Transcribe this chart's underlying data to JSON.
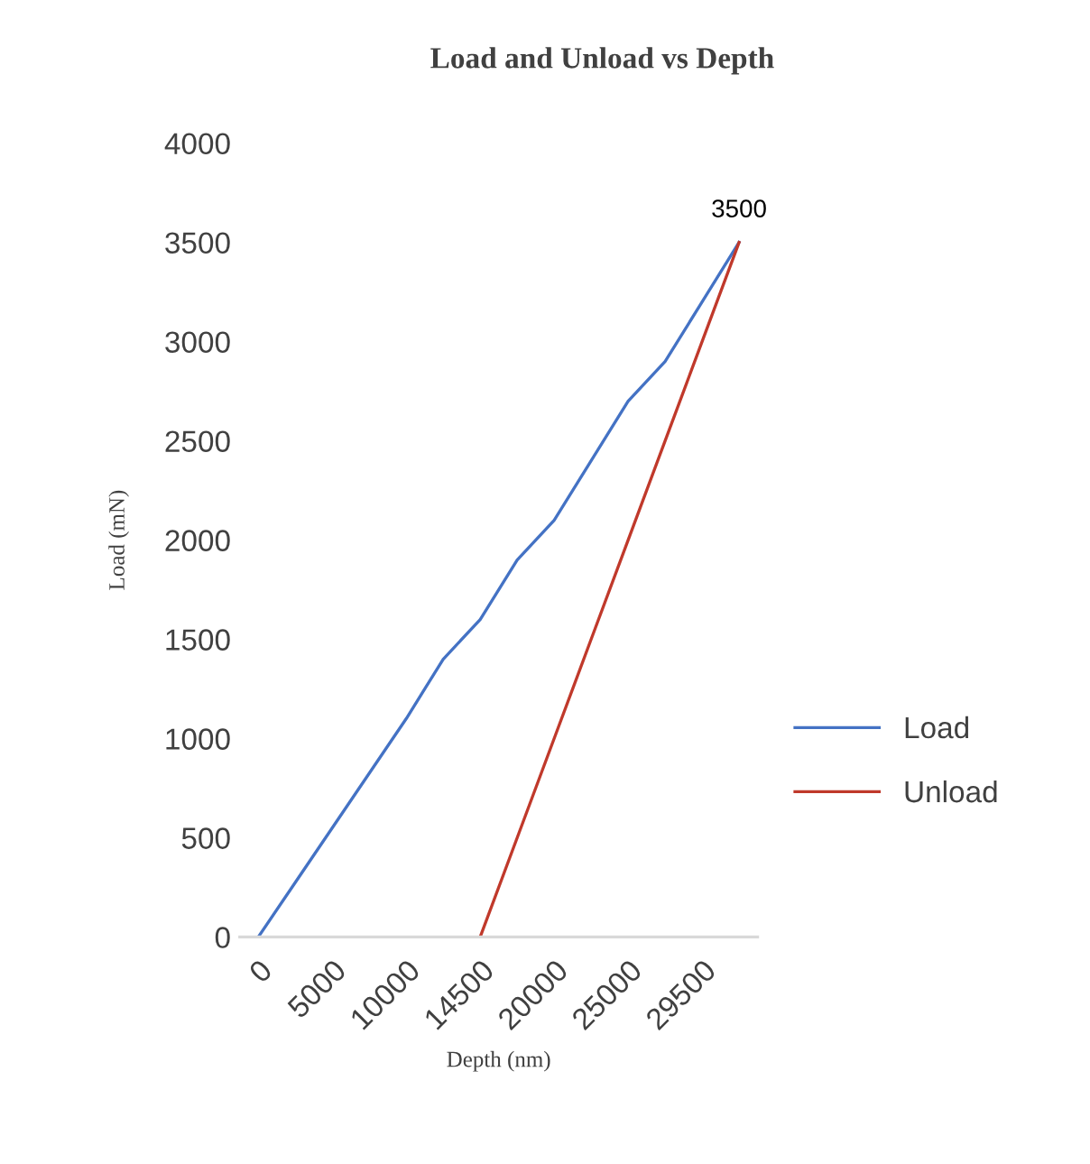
{
  "chart_data": {
    "type": "line",
    "title": "Load and Unload vs Depth",
    "xlabel": "Depth (nm)",
    "ylabel": "Load (mN)",
    "categories": [
      "0",
      null,
      "5000",
      null,
      "10000",
      null,
      "14500",
      null,
      "20000",
      null,
      "25000",
      null,
      "29500",
      null
    ],
    "series": [
      {
        "name": "Load",
        "color": "#4472c4",
        "values": [
          0,
          275,
          550,
          825,
          1100,
          1400,
          1600,
          1900,
          2100,
          2400,
          2700,
          2900,
          3200,
          3500
        ],
        "value_labels": [
          null,
          null,
          null,
          null,
          null,
          null,
          null,
          null,
          null,
          null,
          null,
          null,
          null,
          "3500"
        ]
      },
      {
        "name": "Unload",
        "color": "#c0392b",
        "values": [
          null,
          null,
          null,
          null,
          null,
          null,
          0,
          500,
          1000,
          1500,
          2000,
          2500,
          3000,
          3500
        ]
      }
    ],
    "ylim": [
      0,
      4000
    ],
    "yticks": [
      0,
      500,
      1000,
      1500,
      2000,
      2500,
      3000,
      3500,
      4000
    ],
    "grid": false,
    "legend": "right",
    "marker": "none",
    "line_style": "solid"
  }
}
